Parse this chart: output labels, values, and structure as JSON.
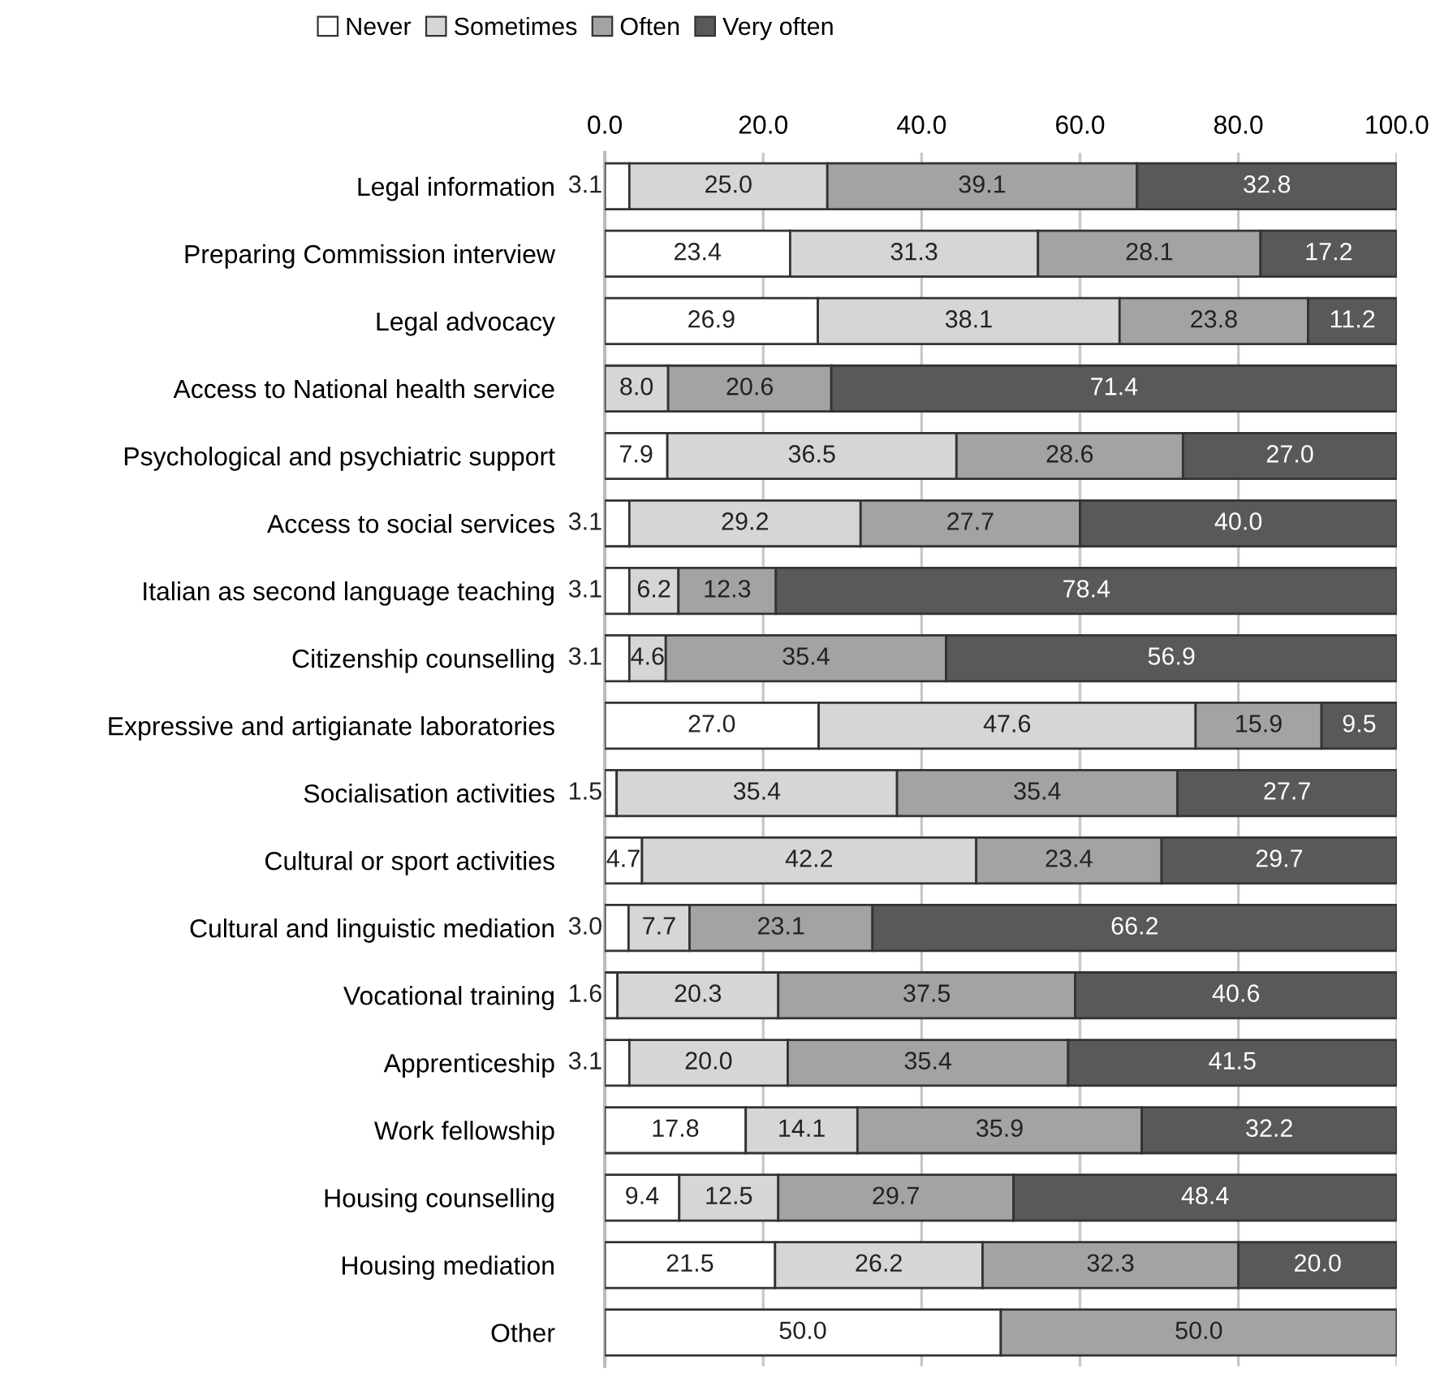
{
  "chart_data": {
    "type": "bar",
    "orientation": "horizontal",
    "stacked": true,
    "grid": "x",
    "legend": "top",
    "categories": [
      "Legal information",
      "Preparing Commission interview",
      "Legal advocacy",
      "Access to National health service",
      "Psychological and psychiatric support",
      "Access to social services",
      "Italian as second language teaching",
      "Citizenship counselling",
      "Expressive and artigianate laboratories",
      "Socialisation activities",
      "Cultural or sport activities",
      "Cultural and linguistic mediation",
      "Vocational training",
      "Apprenticeship",
      "Work fellowship",
      "Housing counselling",
      "Housing mediation",
      "Other"
    ],
    "series": [
      {
        "name": "Never",
        "color": "#ffffff",
        "values": [
          3.1,
          23.4,
          26.9,
          null,
          7.9,
          3.1,
          3.1,
          3.1,
          27.0,
          1.5,
          4.7,
          3.0,
          1.6,
          3.1,
          17.8,
          9.4,
          21.5,
          50.0
        ],
        "value_labels": [
          "3.1",
          "23.4",
          "26.9",
          null,
          "7.9",
          "3.1",
          "3.1",
          "3.1",
          "27.0",
          "1.5",
          "4.7",
          "3.0",
          "1.6",
          "3.1",
          "17.8",
          "9.4",
          "21.5",
          "50.0"
        ]
      },
      {
        "name": "Sometimes",
        "color": "#d6d6d6",
        "values": [
          25.0,
          31.3,
          38.1,
          8.0,
          36.5,
          29.2,
          6.2,
          4.6,
          47.6,
          35.4,
          42.2,
          7.7,
          20.3,
          20.0,
          14.1,
          12.5,
          26.2,
          null
        ],
        "value_labels": [
          "25.0",
          "31.3",
          "38.1",
          "8.0",
          "36.5",
          "29.2",
          "6.2",
          "4.6",
          "47.6",
          "35.4",
          "42.2",
          "7.7",
          "20.3",
          "20.0",
          "14.1",
          "12.5",
          "26.2",
          null
        ]
      },
      {
        "name": "Often",
        "color": "#a3a3a3",
        "values": [
          39.1,
          28.1,
          23.8,
          20.6,
          28.6,
          27.7,
          12.3,
          35.4,
          15.9,
          35.4,
          23.4,
          23.1,
          37.5,
          35.4,
          35.9,
          29.7,
          32.3,
          50.0
        ],
        "value_labels": [
          "39.1",
          "28.1",
          "23.8",
          "20.6",
          "28.6",
          "27.7",
          "12.3",
          "35.4",
          "15.9",
          "35.4",
          "23.4",
          "23.1",
          "37.5",
          "35.4",
          "35.9",
          "29.7",
          "32.3",
          "50.0"
        ]
      },
      {
        "name": "Very often",
        "color": "#595959",
        "values": [
          32.8,
          17.2,
          11.2,
          71.4,
          27.0,
          40.0,
          78.4,
          56.9,
          9.5,
          27.7,
          29.7,
          66.2,
          40.6,
          41.5,
          32.2,
          48.4,
          20.0,
          null
        ],
        "value_labels": [
          "32.8",
          "17.2",
          "11.2",
          "71.4",
          "27.0",
          "40.0",
          "78.4",
          "56.9",
          "9.5",
          "27.7",
          "29.7",
          "66.2",
          "40.6",
          "41.5",
          "32.2",
          "48.4",
          "20.0",
          null
        ]
      }
    ],
    "xlim": [
      0,
      100
    ],
    "xticks": [
      {
        "value": 0,
        "label": "0.0"
      },
      {
        "value": 20,
        "label": "20.0"
      },
      {
        "value": 40,
        "label": "40.0"
      },
      {
        "value": 60,
        "label": "60.0"
      },
      {
        "value": 80,
        "label": "80.0"
      },
      {
        "value": 100,
        "label": "100.0"
      }
    ]
  }
}
